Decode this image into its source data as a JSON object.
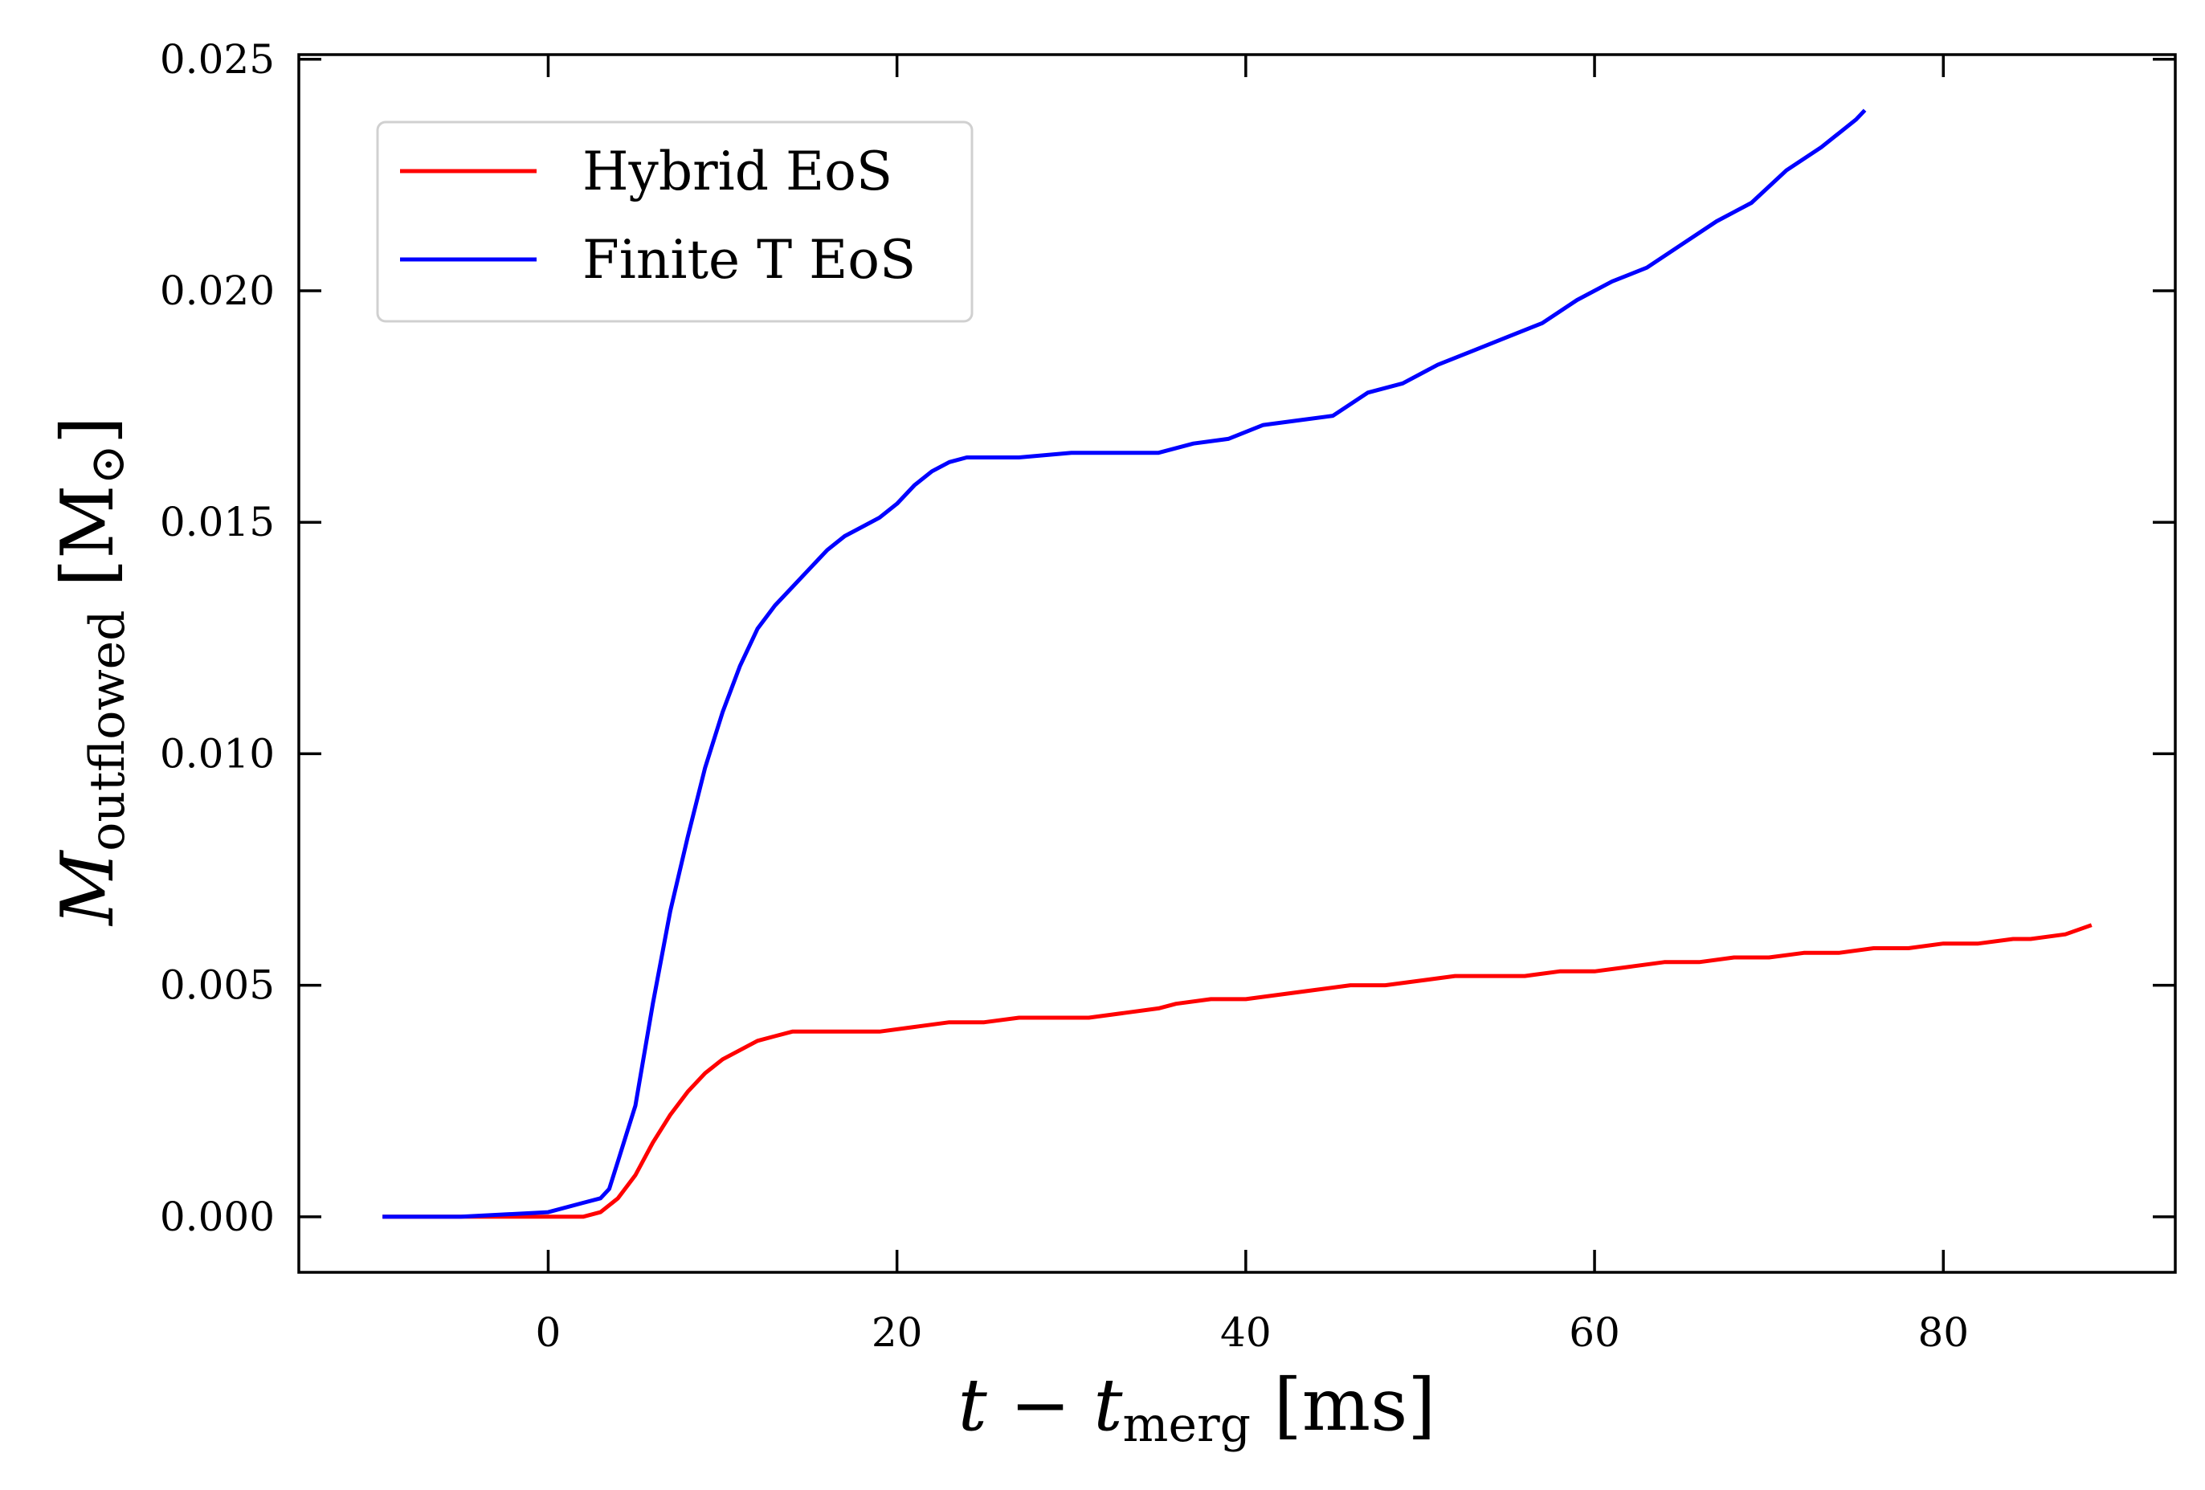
{
  "chart_data": {
    "type": "line",
    "xlabel": {
      "main": "t − t",
      "sub": "merg",
      "unit": " [ms]"
    },
    "ylabel": {
      "main": "M",
      "sub": "outflowed",
      "unit": " [M",
      "unit_sub": "⊙",
      "unit_close": "]"
    },
    "xlim": [
      -14.3,
      93.3
    ],
    "ylim": [
      -0.0012,
      0.0251
    ],
    "x_ticks": [
      0,
      20,
      40,
      60,
      80
    ],
    "x_tick_labels": [
      "0",
      "20",
      "40",
      "60",
      "80"
    ],
    "y_ticks": [
      0.0,
      0.005,
      0.01,
      0.015,
      0.02,
      0.025
    ],
    "y_tick_labels": [
      "0.000",
      "0.005",
      "0.010",
      "0.015",
      "0.020",
      "0.025"
    ],
    "grid": false,
    "legend_position": "top-left",
    "series": [
      {
        "name": "Hybrid EoS",
        "color": "#ff0000",
        "x": [
          -9.5,
          -5,
          0,
          2,
          3,
          4,
          5,
          6,
          7,
          8,
          9,
          10,
          11,
          12,
          13,
          14,
          15,
          17,
          19,
          21,
          23,
          25,
          27,
          29,
          31,
          33,
          35,
          36,
          38,
          40,
          42,
          44,
          46,
          48,
          50,
          52,
          54,
          56,
          58,
          60,
          62,
          64,
          66,
          68,
          70,
          72,
          74,
          76,
          78,
          80,
          82,
          84,
          85,
          87,
          88.5
        ],
        "y": [
          0.0,
          0.0,
          0.0,
          0.0,
          0.0001,
          0.0004,
          0.0009,
          0.0016,
          0.0022,
          0.0027,
          0.0031,
          0.0034,
          0.0036,
          0.0038,
          0.0039,
          0.004,
          0.004,
          0.004,
          0.004,
          0.0041,
          0.0042,
          0.0042,
          0.0043,
          0.0043,
          0.0043,
          0.0044,
          0.0045,
          0.0046,
          0.0047,
          0.0047,
          0.0048,
          0.0049,
          0.005,
          0.005,
          0.0051,
          0.0052,
          0.0052,
          0.0052,
          0.0053,
          0.0053,
          0.0054,
          0.0055,
          0.0055,
          0.0056,
          0.0056,
          0.0057,
          0.0057,
          0.0058,
          0.0058,
          0.0059,
          0.0059,
          0.006,
          0.006,
          0.0061,
          0.0063
        ]
      },
      {
        "name": "Finite T EoS",
        "color": "#0000ff",
        "x": [
          -9.5,
          -5,
          0,
          2,
          3,
          3.5,
          4,
          4.5,
          5,
          6,
          7,
          8,
          9,
          10,
          11,
          12,
          13,
          14,
          15,
          16,
          17,
          18,
          19,
          20,
          21,
          22,
          23,
          24,
          25,
          27,
          30,
          33,
          35,
          37,
          39,
          41,
          43,
          45,
          47,
          49,
          51,
          53,
          55,
          57,
          59,
          61,
          63,
          65,
          67,
          69,
          71,
          73,
          75,
          75.5
        ],
        "y": [
          0.0,
          0.0,
          0.0001,
          0.0003,
          0.0004,
          0.0006,
          0.0012,
          0.0018,
          0.0024,
          0.0046,
          0.0066,
          0.0082,
          0.0097,
          0.0109,
          0.0119,
          0.0127,
          0.0132,
          0.0136,
          0.014,
          0.0144,
          0.0147,
          0.0149,
          0.0151,
          0.0154,
          0.0158,
          0.0161,
          0.0163,
          0.0164,
          0.0164,
          0.0164,
          0.0165,
          0.0165,
          0.0165,
          0.0167,
          0.0168,
          0.0171,
          0.0172,
          0.0173,
          0.0178,
          0.018,
          0.0184,
          0.0187,
          0.019,
          0.0193,
          0.0198,
          0.0202,
          0.0205,
          0.021,
          0.0215,
          0.0219,
          0.0226,
          0.0231,
          0.0237,
          0.0239
        ]
      }
    ]
  }
}
